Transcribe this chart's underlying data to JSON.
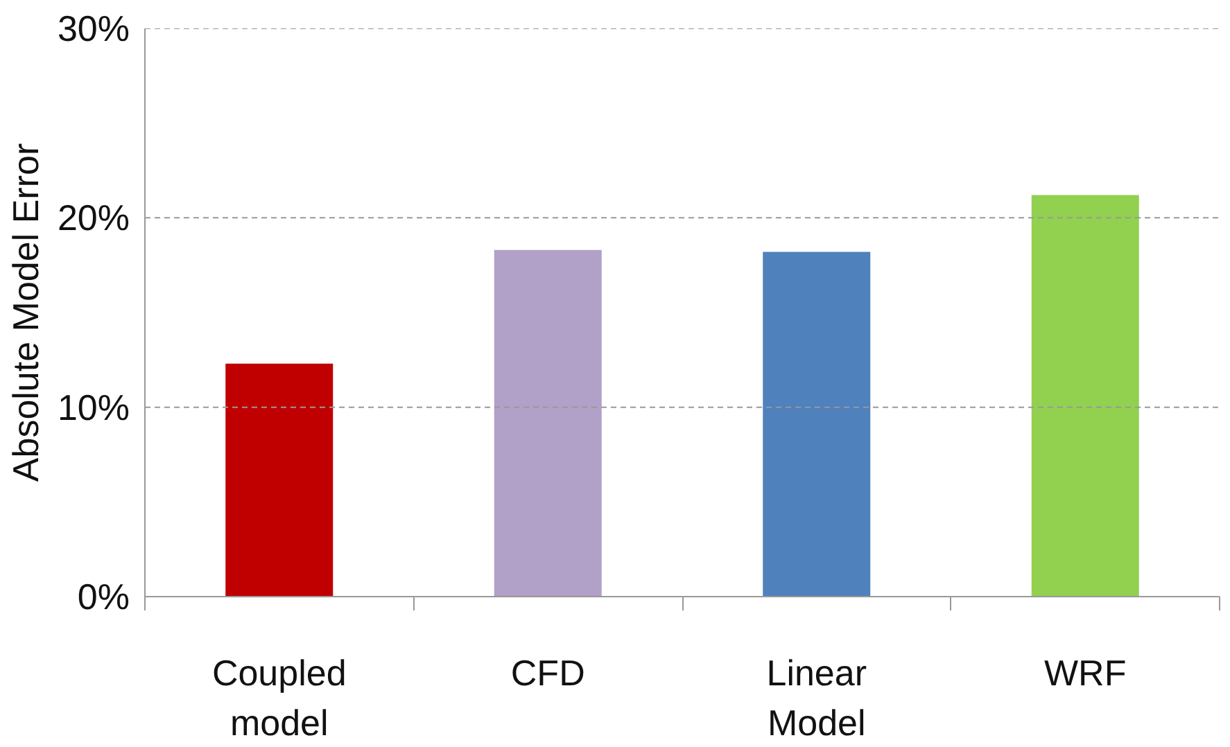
{
  "chart_data": {
    "type": "bar",
    "ylabel": "Absolute Model Error",
    "categories": [
      "Coupled model",
      "CFD",
      "Linear Model",
      "WRF"
    ],
    "values": [
      12.3,
      18.3,
      18.2,
      21.2
    ],
    "colors": [
      "#c00000",
      "#b1a0c7",
      "#4f81bd",
      "#92d050"
    ],
    "ylim": [
      0,
      30
    ],
    "yticks": [
      {
        "value": 0,
        "label": "0%"
      },
      {
        "value": 10,
        "label": "10%"
      },
      {
        "value": 20,
        "label": "20%"
      },
      {
        "value": 30,
        "label": "30%"
      }
    ],
    "grid": "y"
  }
}
